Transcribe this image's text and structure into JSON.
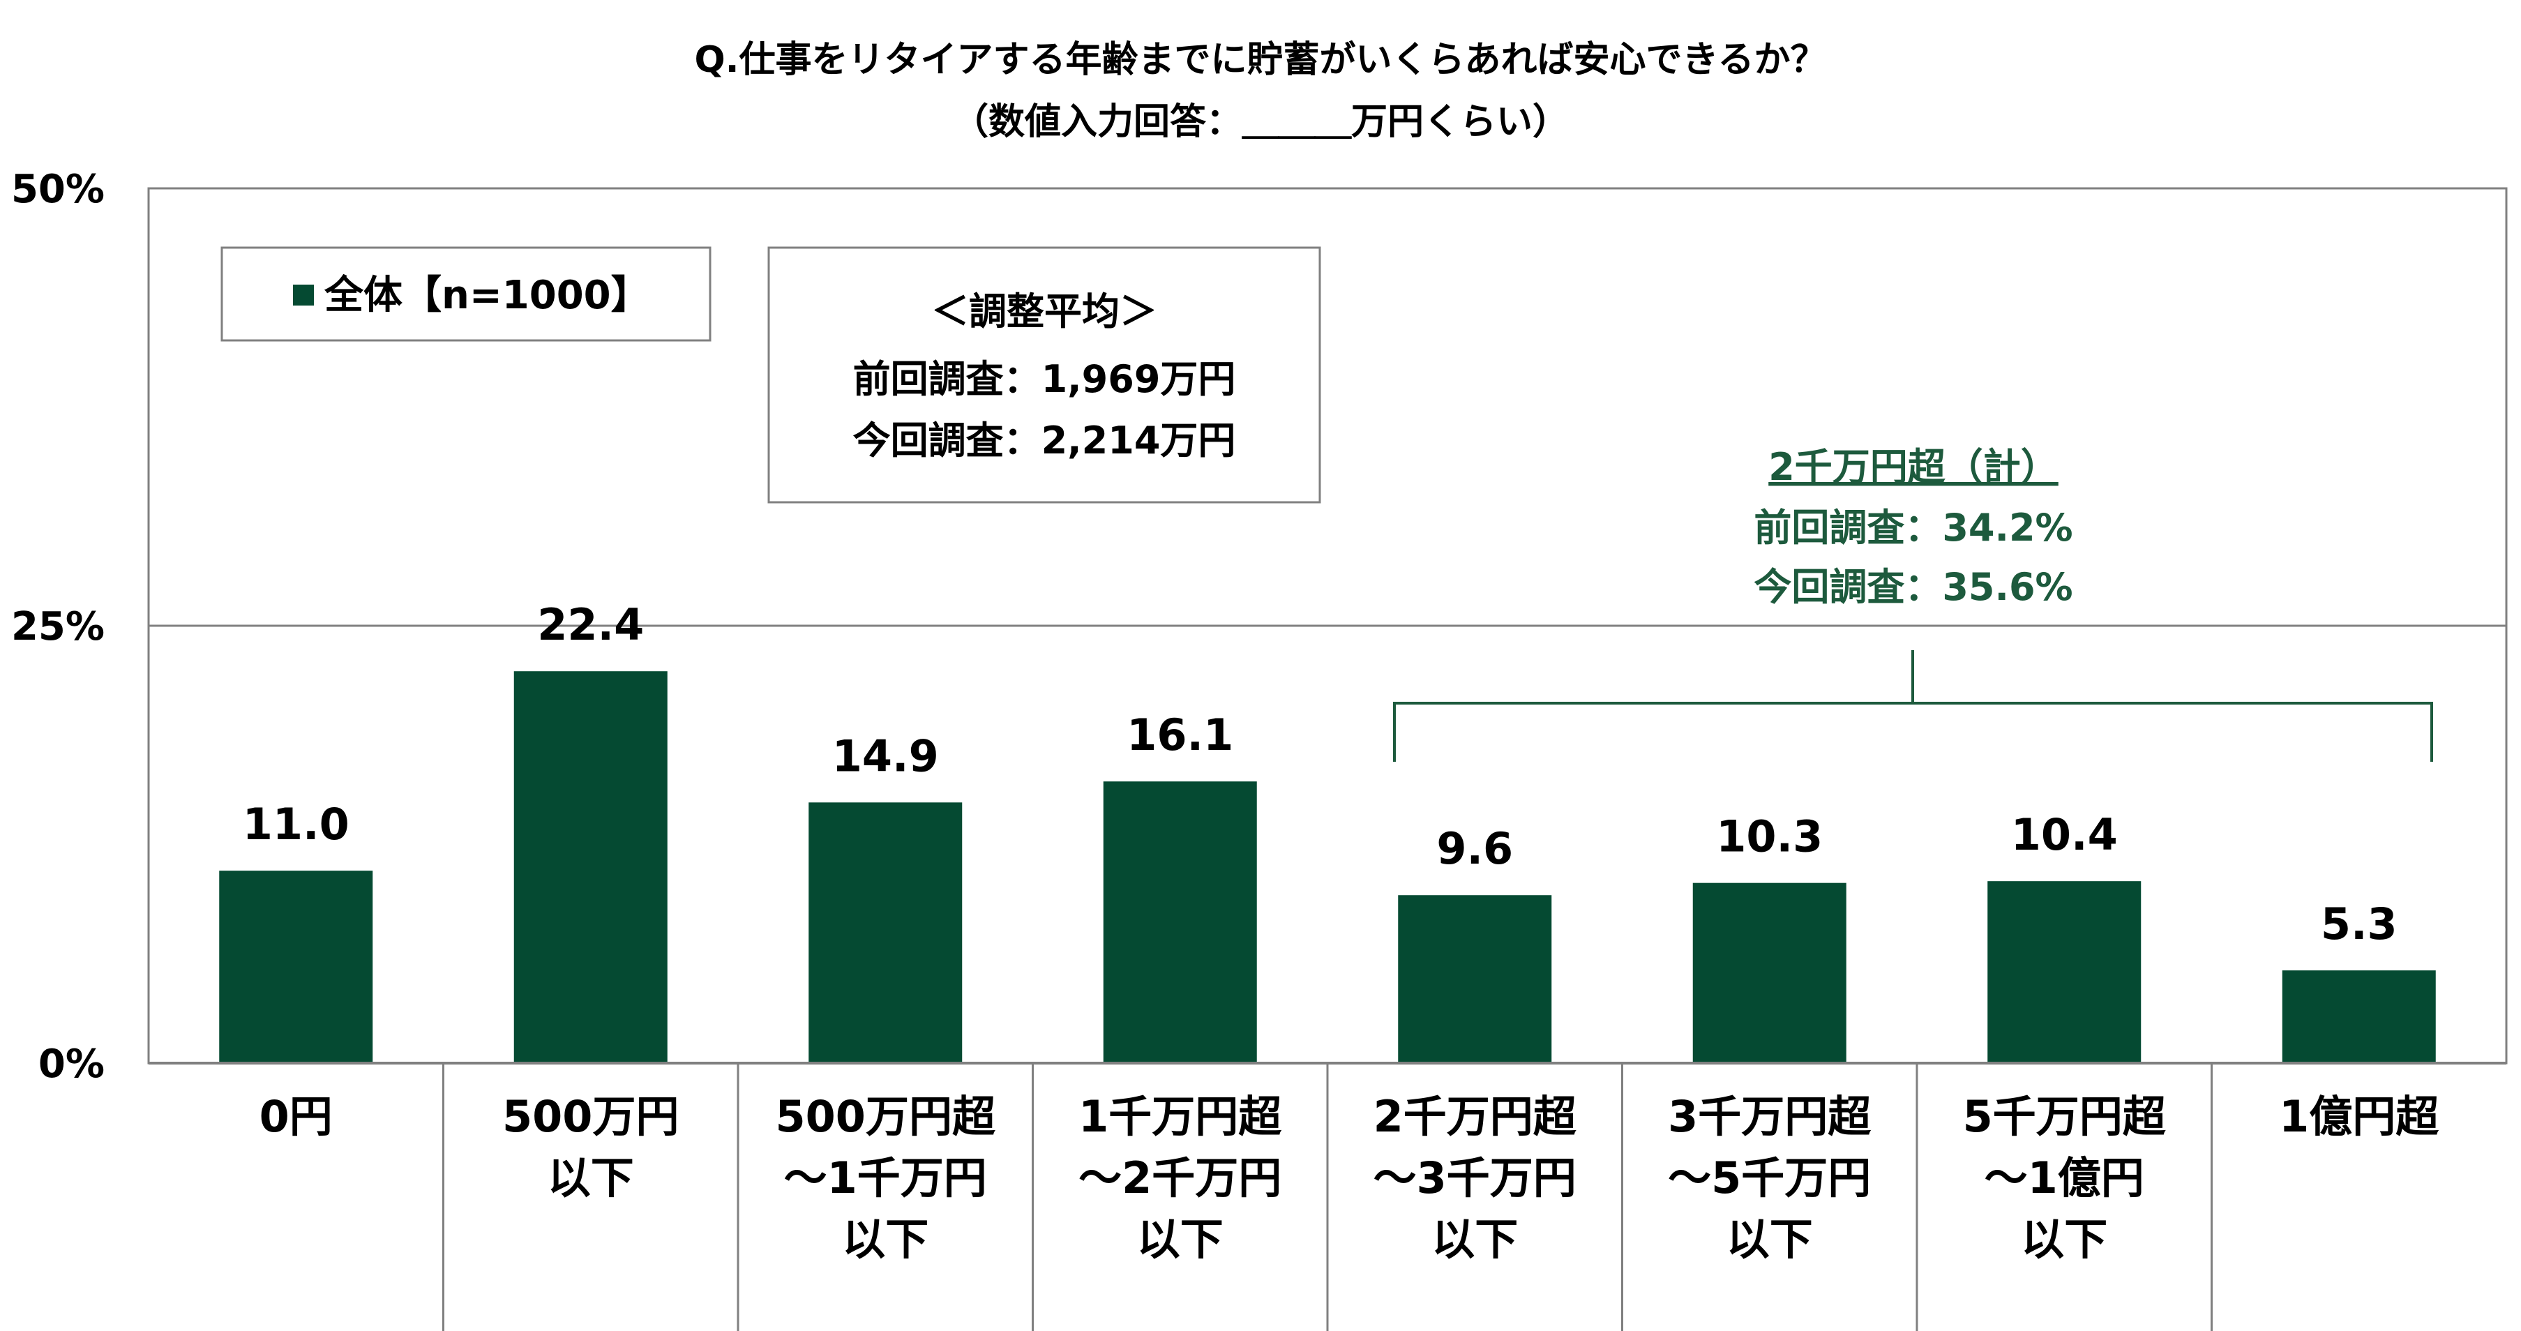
{
  "title_line1": "Q.仕事をリタイアする年齢までに貯蓄がいくらあれば安心できるか？",
  "title_line2": "（数値入力回答：＿＿＿万円くらい）",
  "legend": {
    "label": "全体【n=1000】"
  },
  "average_box": {
    "heading": "＜調整平均＞",
    "previous": "前回調査：1,969万円",
    "current": "今回調査：2,214万円"
  },
  "group_note": {
    "heading": "2千万円超（計）",
    "previous": "前回調査：34.2%",
    "current": "今回調査：35.6%"
  },
  "colors": {
    "bar": "#054a32",
    "note": "#1d5a3d",
    "axis": "#808080"
  },
  "chart_data": {
    "type": "bar",
    "categories": [
      [
        "0円"
      ],
      [
        "500万円",
        "以下"
      ],
      [
        "500万円超",
        "～1千万円",
        "以下"
      ],
      [
        "1千万円超",
        "～2千万円",
        "以下"
      ],
      [
        "2千万円超",
        "～3千万円",
        "以下"
      ],
      [
        "3千万円超",
        "～5千万円",
        "以下"
      ],
      [
        "5千万円超",
        "～1億円",
        "以下"
      ],
      [
        "1億円超"
      ]
    ],
    "series": [
      {
        "name": "全体【n=1000】",
        "values": [
          11.0,
          22.4,
          14.9,
          16.1,
          9.6,
          10.3,
          10.4,
          5.3
        ]
      }
    ],
    "data_labels": [
      "11.0",
      "22.4",
      "14.9",
      "16.1",
      "9.6",
      "10.3",
      "10.4",
      "5.3"
    ],
    "ylim": [
      0,
      50
    ],
    "yticks": [
      "0%",
      "25%",
      "50%"
    ],
    "ytick_values": [
      0,
      25,
      50
    ],
    "grid": "horizontal gridline at 25%",
    "legend_position": "top-left",
    "bracket_categories": [
      4,
      7
    ]
  }
}
